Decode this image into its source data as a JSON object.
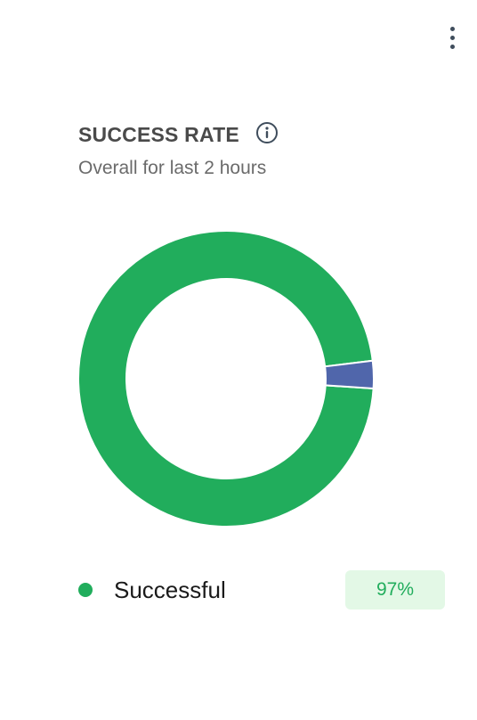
{
  "header": {
    "title": "SUCCESS RATE",
    "subtitle": "Overall for last 2 hours"
  },
  "icons": {
    "menu": "more-vertical-icon",
    "info": "info-icon"
  },
  "colors": {
    "successful": "#21ad5c",
    "other": "#5066ab",
    "badge_bg": "#e3f8e6"
  },
  "legend": {
    "label": "Successful",
    "percent": "97%"
  },
  "chart_data": {
    "type": "pie",
    "donut": true,
    "title": "SUCCESS RATE",
    "subtitle": "Overall for last 2 hours",
    "slices": [
      {
        "label": "Successful",
        "value": 97,
        "color": "#21ad5c"
      },
      {
        "label": "",
        "value": 3,
        "color": "#5066ab"
      }
    ],
    "legend_position": "bottom"
  }
}
